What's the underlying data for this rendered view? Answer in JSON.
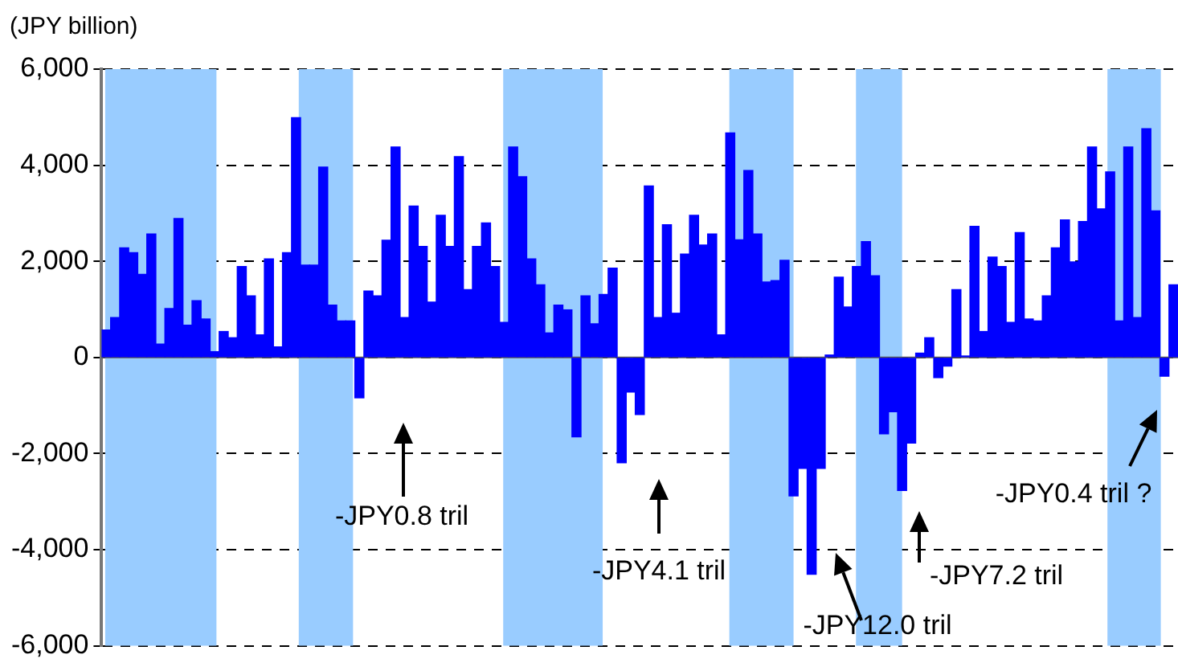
{
  "chart_data": {
    "type": "bar",
    "ylabel": "(JPY billion)",
    "categories": [
      null,
      null,
      null,
      null,
      null,
      null,
      null,
      null,
      null,
      null,
      null,
      null,
      null,
      null,
      null,
      null,
      null,
      null,
      null,
      null,
      null,
      null,
      null,
      null,
      null,
      null,
      null,
      null,
      null,
      null,
      null,
      null,
      null,
      null,
      null,
      null,
      null,
      null,
      null,
      null,
      null,
      null,
      null,
      null,
      null,
      null,
      null,
      null,
      null,
      null,
      null,
      null,
      null,
      null,
      null,
      null,
      null,
      null,
      null,
      null,
      null,
      null,
      null,
      null,
      null,
      null,
      null,
      null,
      null,
      null,
      null,
      null,
      null,
      null,
      null,
      null,
      null,
      null,
      null,
      null,
      null,
      null,
      null,
      null,
      null,
      null,
      null,
      null,
      null,
      null,
      null,
      null,
      null,
      null,
      null,
      null,
      null,
      null,
      null,
      null,
      null,
      null,
      null,
      null,
      null,
      null,
      null,
      null,
      null,
      null,
      null,
      null,
      null,
      null,
      null,
      null,
      null,
      null,
      null
    ],
    "values": [
      570,
      830,
      2280,
      2180,
      1730,
      2570,
      280,
      1020,
      2890,
      670,
      1180,
      800,
      120,
      540,
      410,
      1890,
      1280,
      470,
      2050,
      220,
      2180,
      4990,
      1920,
      1920,
      3960,
      1090,
      760,
      760,
      -840,
      1380,
      1280,
      2440,
      4380,
      830,
      3150,
      2310,
      1150,
      2960,
      2310,
      4180,
      1410,
      2310,
      2800,
      1890,
      730,
      4380,
      3760,
      2050,
      1510,
      510,
      1090,
      990,
      -1650,
      1280,
      700,
      1310,
      1860,
      -2190,
      -720,
      -1190,
      3570,
      830,
      2760,
      920,
      2150,
      2960,
      2340,
      2570,
      470,
      4670,
      2450,
      3890,
      2570,
      1570,
      1600,
      2020,
      -2880,
      -2310,
      -4510,
      -2310,
      50,
      1670,
      1050,
      1890,
      2410,
      1700,
      -1590,
      -1130,
      -2770,
      -1780,
      90,
      410,
      -420,
      -180,
      1410,
      30,
      2730,
      540,
      2090,
      1890,
      730,
      2600,
      800,
      760,
      1280,
      2280,
      2860,
      1990,
      2830,
      4380,
      3090,
      3860,
      760,
      4380,
      830,
      4760,
      3050,
      -390,
      1510
    ],
    "color": "#0000ff",
    "ylim": [
      -6000,
      6000
    ],
    "yticks": [
      {
        "value": -6000,
        "label": "-6,000"
      },
      {
        "value": -4000,
        "label": "-4,000"
      },
      {
        "value": -2000,
        "label": "-2,000"
      },
      0,
      {
        "value": 2000,
        "label": "2,000"
      },
      {
        "value": 4000,
        "label": "4,000"
      },
      {
        "value": 6000,
        "label": "6,000"
      }
    ],
    "grid": "y",
    "annotations": [
      "-JPY0.8 tril",
      "-JPY4.1 tril",
      "-JPY12.0 tril",
      "-JPY7.2 tril",
      "-JPY0.4 tril ?"
    ]
  }
}
